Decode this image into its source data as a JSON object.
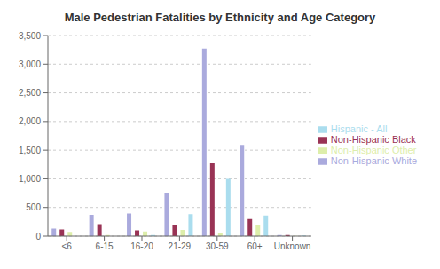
{
  "chart_data": {
    "type": "bar",
    "title": "Male Pedestrian Fatalities by Ethnicity and Age Category",
    "categories": [
      "<6",
      "6-15",
      "16-20",
      "21-29",
      "30-59",
      "60+",
      "Unknown"
    ],
    "series": [
      {
        "name": "Non-Hispanic White",
        "color": "#aaaadd",
        "values": [
          130,
          370,
          395,
          760,
          3270,
          1590,
          20
        ]
      },
      {
        "name": "Non-Hispanic Black",
        "color": "#993355",
        "values": [
          115,
          210,
          100,
          185,
          1270,
          300,
          20
        ]
      },
      {
        "name": "Non-Hispanic Other",
        "color": "#ddeeaa",
        "values": [
          75,
          20,
          80,
          110,
          50,
          195,
          5
        ]
      },
      {
        "name": "Hispanic - All",
        "color": "#aaddee",
        "values": [
          0,
          0,
          20,
          385,
          1000,
          360,
          10
        ]
      }
    ],
    "ylim": [
      0,
      3500
    ],
    "yticks": [
      0,
      500,
      {
        "value": 1000,
        "label": "1,000"
      },
      {
        "value": 1500,
        "label": "1,500"
      },
      {
        "value": 2000,
        "label": "2,000"
      },
      {
        "value": 2500,
        "label": "2,500"
      },
      {
        "value": 3000,
        "label": "3,000"
      },
      {
        "value": 3500,
        "label": "3,500"
      }
    ],
    "grid": true,
    "legend": "right"
  }
}
